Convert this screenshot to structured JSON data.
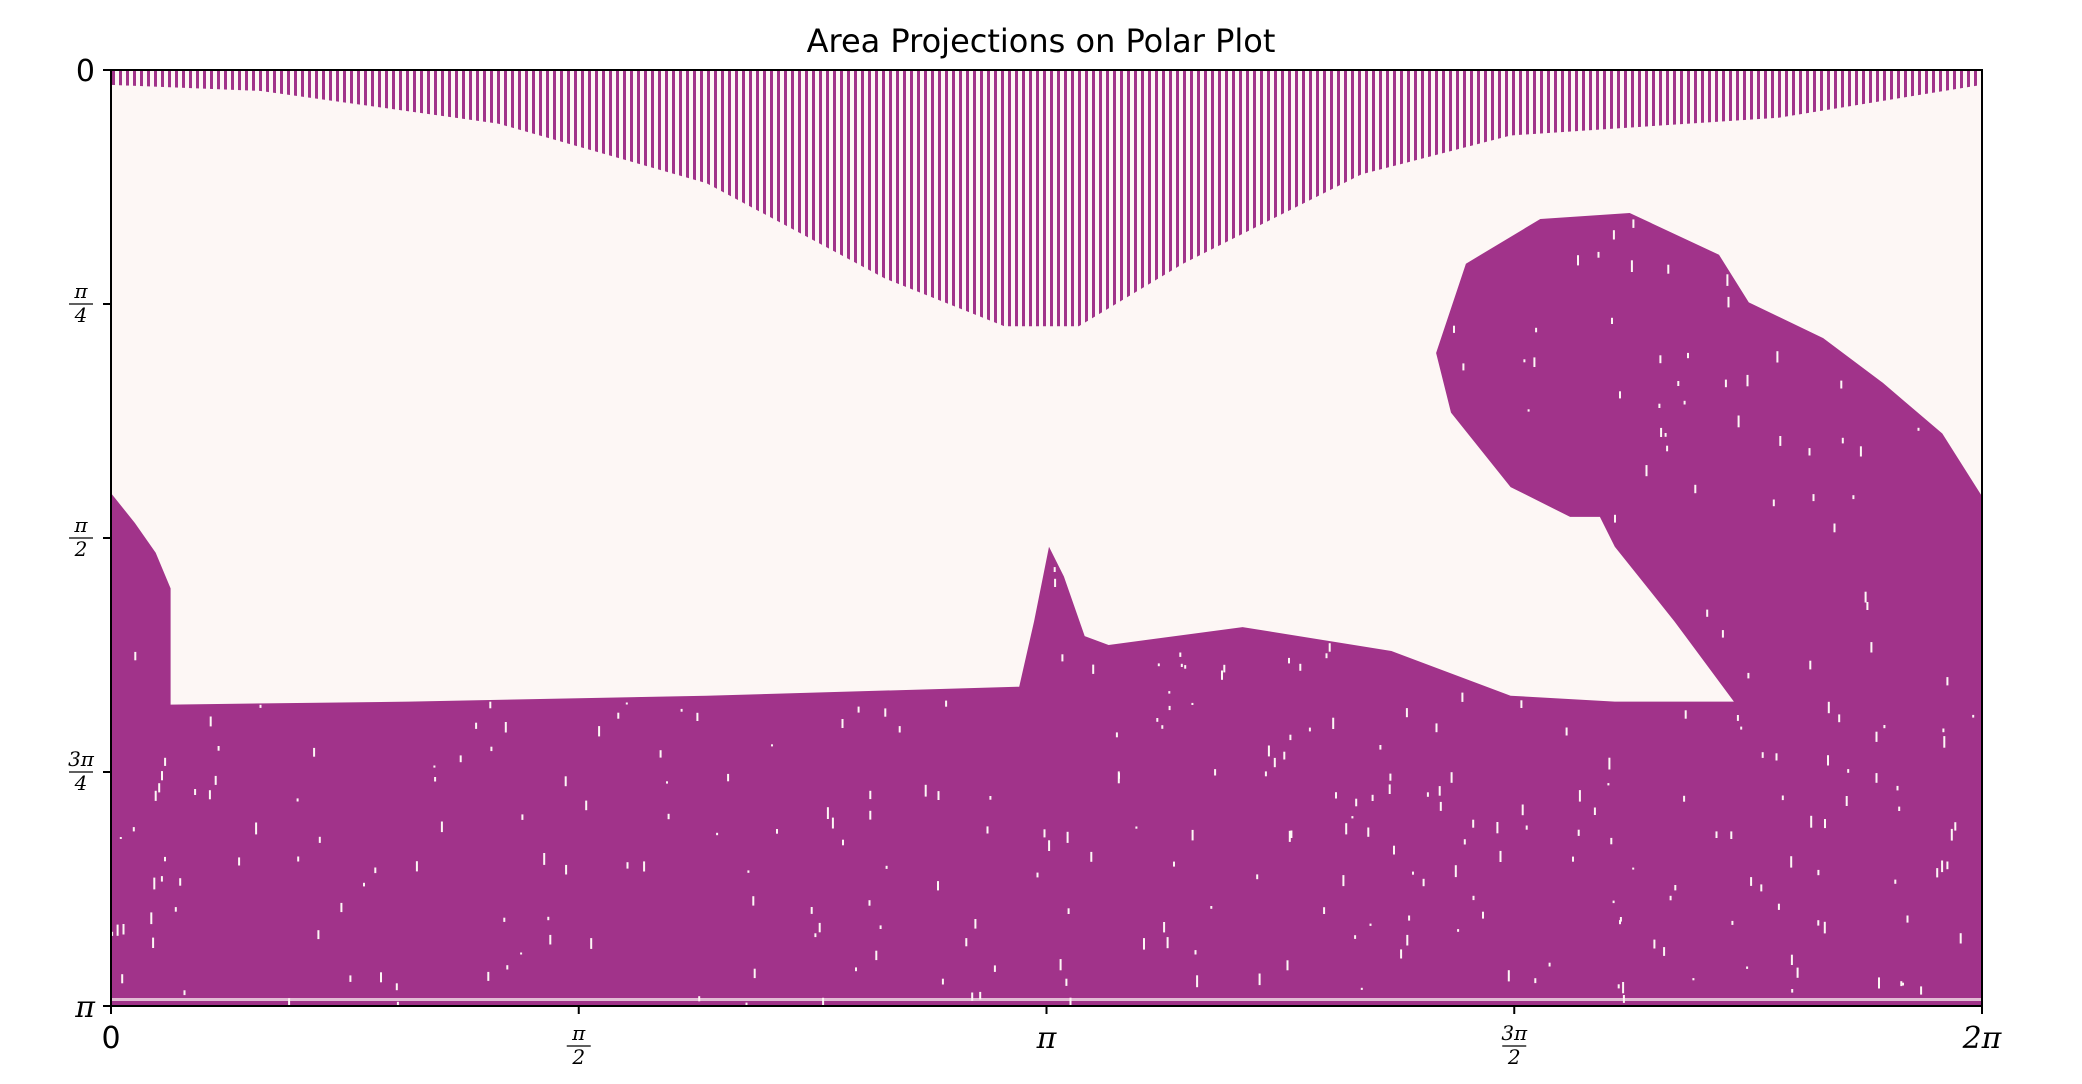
{
  "chart_data": {
    "type": "heatmap",
    "title": "Area Projections on Polar Plot",
    "xlabel": "",
    "ylabel": "",
    "xlim": [
      0,
      6.283185
    ],
    "ylim": [
      0,
      3.141593
    ],
    "y_axis_inverted": true,
    "x_ticks": [
      {
        "value": 0,
        "label": "0"
      },
      {
        "value": 1.570796,
        "num": "π",
        "den": "2"
      },
      {
        "value": 3.141593,
        "label": "π"
      },
      {
        "value": 4.712389,
        "num": "3π",
        "den": "2"
      },
      {
        "value": 6.283185,
        "label": "2π"
      }
    ],
    "y_ticks": [
      {
        "value": 0,
        "label": "0"
      },
      {
        "value": 0.785398,
        "num": "π",
        "den": "4"
      },
      {
        "value": 1.570796,
        "num": "π",
        "den": "2"
      },
      {
        "value": 2.356194,
        "num": "3π",
        "den": "4"
      },
      {
        "value": 3.141593,
        "label": "π"
      }
    ],
    "colors": {
      "background": "#fdf7f5",
      "fill": "#a1338a"
    },
    "regions": [
      {
        "name": "top-band",
        "polygon": [
          [
            0,
            0
          ],
          [
            6.283,
            0
          ],
          [
            6.283,
            0.05
          ],
          [
            5.6,
            0.16
          ],
          [
            4.7,
            0.22
          ],
          [
            4.2,
            0.35
          ],
          [
            3.6,
            0.65
          ],
          [
            3.25,
            0.86
          ],
          [
            3.0,
            0.86
          ],
          [
            2.6,
            0.7
          ],
          [
            2.0,
            0.38
          ],
          [
            1.3,
            0.18
          ],
          [
            0.5,
            0.07
          ],
          [
            0,
            0.05
          ]
        ]
      },
      {
        "name": "bottom-fill",
        "polygon": [
          [
            0,
            1.42
          ],
          [
            0.08,
            1.52
          ],
          [
            0.15,
            1.62
          ],
          [
            0.2,
            1.74
          ],
          [
            0.2,
            2.13
          ],
          [
            1.0,
            2.12
          ],
          [
            2.0,
            2.1
          ],
          [
            3.05,
            2.07
          ],
          [
            3.1,
            1.85
          ],
          [
            3.15,
            1.6
          ],
          [
            3.2,
            1.7
          ],
          [
            3.27,
            1.9
          ],
          [
            3.35,
            1.93
          ],
          [
            3.8,
            1.87
          ],
          [
            4.3,
            1.95
          ],
          [
            4.7,
            2.1
          ],
          [
            5.05,
            2.12
          ],
          [
            5.45,
            2.12
          ],
          [
            5.25,
            1.85
          ],
          [
            5.05,
            1.6
          ],
          [
            5.0,
            1.5
          ],
          [
            4.9,
            1.5
          ],
          [
            4.7,
            1.4
          ],
          [
            4.5,
            1.15
          ],
          [
            4.45,
            0.95
          ],
          [
            4.55,
            0.65
          ],
          [
            4.8,
            0.5
          ],
          [
            5.1,
            0.48
          ],
          [
            5.4,
            0.62
          ],
          [
            5.5,
            0.78
          ],
          [
            5.75,
            0.9
          ],
          [
            5.95,
            1.05
          ],
          [
            6.15,
            1.22
          ],
          [
            6.283,
            1.43
          ],
          [
            6.283,
            3.141
          ],
          [
            0,
            3.141
          ]
        ]
      }
    ]
  }
}
